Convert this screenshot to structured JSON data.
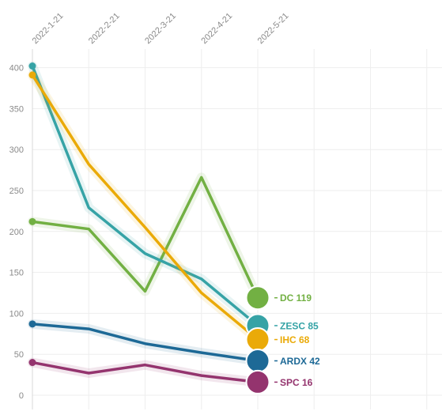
{
  "chart_data": {
    "type": "line",
    "x": [
      "2022-1-21",
      "2022-2-21",
      "2022-3-21",
      "2022-4-21",
      "2022-5-21"
    ],
    "ylim": [
      0,
      420
    ],
    "yticks": [
      0,
      50,
      100,
      150,
      200,
      250,
      300,
      350,
      400
    ],
    "grid": true,
    "labels_at_line_end": true,
    "series": [
      {
        "name": "DC",
        "color": "#72b043",
        "values": [
          212,
          203,
          127,
          266,
          119
        ],
        "end_label": "DC 119"
      },
      {
        "name": "ZESC",
        "color": "#36a3a6",
        "values": [
          402,
          229,
          173,
          142,
          85
        ],
        "end_label": "ZESC 85"
      },
      {
        "name": "IHC",
        "color": "#eaaa08",
        "values": [
          391,
          282,
          205,
          125,
          68
        ],
        "end_label": "IHC 68"
      },
      {
        "name": "ARDX",
        "color": "#1d6996",
        "values": [
          87,
          81,
          63,
          52,
          42
        ],
        "end_label": "ARDX 42"
      },
      {
        "name": "SPC",
        "color": "#94346e",
        "values": [
          40,
          27,
          37,
          24,
          16
        ],
        "end_label": "SPC 16"
      }
    ]
  }
}
